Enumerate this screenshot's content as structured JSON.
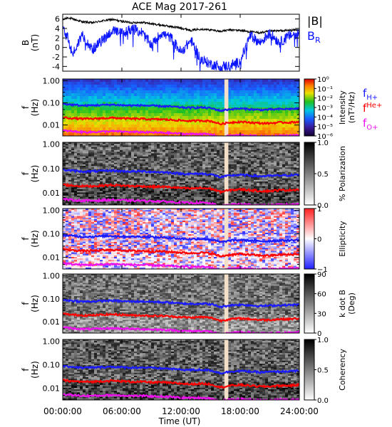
{
  "chart_data": {
    "type": "multi-panel time series and spectrograms",
    "title": "ACE Mag 2017-261",
    "xlabel": "Time (UT)",
    "xlim_hours": [
      0,
      24
    ],
    "x_tick_labels": [
      "00:00:00",
      "06:00:00",
      "12:00:00",
      "18:00:00",
      "24:00:00"
    ],
    "data_gap_hours": [
      16.4,
      16.8
    ],
    "colors": {
      "B_total": "#000000",
      "B_R": "#0a14ff",
      "f_H": "#1a1aff",
      "f_He": "#ff0000",
      "f_O": "#ee11ee",
      "gap": "#f4e0c8"
    },
    "panels": [
      {
        "type": "line",
        "ylabel": "B",
        "yunit": "(nT)",
        "ylim": [
          -5,
          7
        ],
        "y_tick_labels": [
          "6",
          "4",
          "2",
          "0",
          "-2",
          "-4"
        ],
        "legend": [
          "|B|",
          "B"
        ],
        "legend_subscript": [
          "",
          "R"
        ],
        "series": [
          {
            "name": "|B|",
            "key": "B_total",
            "x": [
              0,
              0.5,
              1,
              2,
              3,
              4,
              5,
              6,
              7,
              8,
              9,
              10,
              11,
              12,
              13,
              14,
              15,
              16,
              17,
              18,
              19,
              20,
              21,
              22,
              23,
              24
            ],
            "values": [
              5.8,
              6.3,
              6.0,
              5.4,
              5.2,
              5.6,
              5.9,
              5.5,
              5.2,
              5.3,
              5.0,
              4.7,
              4.4,
              4.1,
              3.6,
              3.9,
              3.7,
              3.4,
              3.7,
              3.6,
              3.3,
              3.1,
              3.4,
              3.5,
              3.6,
              3.7
            ]
          },
          {
            "name": "B_R",
            "key": "B_R",
            "x": [
              0,
              0.5,
              1,
              2,
              3,
              4,
              5,
              6,
              7,
              8,
              9,
              10,
              11,
              12,
              13,
              14,
              15,
              16,
              17,
              18,
              19,
              20,
              21,
              22,
              23,
              24
            ],
            "values": [
              4.5,
              2.0,
              -1.5,
              2.8,
              -0.5,
              1.5,
              3.5,
              3.0,
              4.0,
              3.2,
              0.5,
              3.0,
              2.0,
              -1.0,
              1.5,
              -2.5,
              -3.5,
              -4.0,
              -3.8,
              -3.0,
              2.5,
              1.0,
              3.0,
              1.0,
              2.5,
              3.0
            ]
          }
        ]
      },
      {
        "type": "spectrogram",
        "kind": "intensity",
        "ylabel": "f",
        "yunit": "(Hz)",
        "ylim_log": [
          0.0032,
          1.2
        ],
        "y_tick_labels": [
          "1.00",
          "0.10",
          "0.01"
        ],
        "colorbar": {
          "label": "Intensity",
          "unit": "(nT²/Hz)",
          "scale": "log",
          "tick_labels": [
            "10⁰",
            "10⁻¹",
            "10⁻²",
            "10⁻³",
            "10⁻⁴",
            "10⁻⁵",
            "10⁻⁶"
          ]
        },
        "legend": [
          "f",
          "f",
          "f"
        ],
        "legend_subscript": [
          "H+",
          "He+",
          "O+"
        ]
      },
      {
        "type": "spectrogram",
        "kind": "polarization",
        "ylabel": "f",
        "yunit": "(Hz)",
        "ylim_log": [
          0.0032,
          1.2
        ],
        "y_tick_labels": [
          "1.00",
          "0.10",
          "0.01"
        ],
        "colorbar": {
          "label": "% Polarization",
          "scale": "linear",
          "tick_labels": [
            "1.0",
            "0.5",
            "0.0"
          ]
        }
      },
      {
        "type": "spectrogram",
        "kind": "ellipticity",
        "ylabel": "f",
        "yunit": "(Hz)",
        "ylim_log": [
          0.0032,
          1.2
        ],
        "y_tick_labels": [
          "1.00",
          "0.10",
          "0.01"
        ],
        "colorbar": {
          "label": "Ellipticity",
          "scale": "linear",
          "tick_labels": [
            "1",
            "0",
            "−1"
          ]
        }
      },
      {
        "type": "spectrogram",
        "kind": "kdotb",
        "ylabel": "f",
        "yunit": "(Hz)",
        "ylim_log": [
          0.0032,
          1.2
        ],
        "y_tick_labels": [
          "1.00",
          "0.10",
          "0.01"
        ],
        "colorbar": {
          "label": "k dot B",
          "unit": "(Deg)",
          "scale": "linear",
          "tick_labels": [
            "90",
            "60",
            "30",
            "0"
          ]
        }
      },
      {
        "type": "spectrogram",
        "kind": "coherency",
        "ylabel": "f",
        "yunit": "(Hz)",
        "ylim_log": [
          0.0032,
          1.2
        ],
        "y_tick_labels": [
          "1.00",
          "0.10",
          "0.01"
        ],
        "colorbar": {
          "label": "Coherency",
          "scale": "linear",
          "tick_labels": [
            "1.0",
            "0.5",
            "0.0"
          ]
        }
      }
    ],
    "gyrofrequency_curves_hz": {
      "x": [
        0,
        1,
        2,
        3,
        4,
        5,
        6,
        7,
        8,
        9,
        10,
        11,
        12,
        13,
        14,
        15,
        16,
        17,
        18,
        19,
        20,
        21,
        22,
        23,
        24
      ],
      "f_H+": [
        0.09,
        0.082,
        0.075,
        0.077,
        0.08,
        0.083,
        0.078,
        0.076,
        0.077,
        0.074,
        0.071,
        0.068,
        0.062,
        0.06,
        0.062,
        0.058,
        0.044,
        0.052,
        0.055,
        0.052,
        0.048,
        0.05,
        0.052,
        0.053,
        0.055
      ],
      "f_He+": [
        0.022,
        0.02,
        0.019,
        0.019,
        0.02,
        0.021,
        0.02,
        0.019,
        0.019,
        0.018,
        0.018,
        0.017,
        0.016,
        0.015,
        0.016,
        0.015,
        0.011,
        0.013,
        0.014,
        0.013,
        0.012,
        0.012,
        0.013,
        0.013,
        0.014
      ],
      "f_O+": [
        0.0056,
        0.0051,
        0.0048,
        0.0048,
        0.005,
        0.0052,
        0.005,
        0.0048,
        0.0048,
        0.0046,
        0.0045,
        0.0043,
        0.004,
        0.0039,
        0.004,
        0.0037,
        0.0028,
        0.0033,
        0.0035,
        0.0033,
        0.0031,
        0.0031,
        0.0033,
        0.0033,
        0.0035
      ]
    }
  }
}
